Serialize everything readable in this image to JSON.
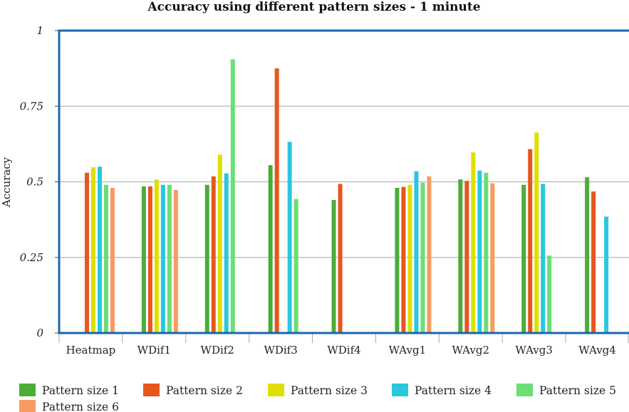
{
  "chart_data": {
    "type": "bar",
    "title": "Accuracy using different pattern sizes - 1 minute",
    "xlabel": "",
    "ylabel": "Accuracy",
    "ylim": [
      0,
      1
    ],
    "yticks": [
      0,
      0.25,
      0.5,
      0.75,
      1
    ],
    "ytick_labels": [
      "0",
      "0.25",
      "0.5",
      "0.75",
      "1"
    ],
    "grid": true,
    "legend_position": "bottom",
    "categories": [
      "Heatmap",
      "WDif1",
      "WDif2",
      "WDif3",
      "WDif4",
      "WAvg1",
      "WAvg2",
      "WAvg3",
      "WAvg4"
    ],
    "series": [
      {
        "name": "Pattern size 1",
        "color": "#4cac3a",
        "values": [
          0,
          0.485,
          0.49,
          0.555,
          0.44,
          0.48,
          0.508,
          0.49,
          0.515
        ]
      },
      {
        "name": "Pattern size 2",
        "color": "#e85620",
        "values": [
          0.53,
          0.485,
          0.518,
          0.875,
          0.493,
          0.483,
          0.503,
          0.608,
          0.468
        ]
      },
      {
        "name": "Pattern size 3",
        "color": "#dee000",
        "values": [
          0.548,
          0.508,
          0.59,
          0,
          0,
          0.49,
          0.597,
          0.663,
          0
        ]
      },
      {
        "name": "Pattern size 4",
        "color": "#2ac7dd",
        "values": [
          0.55,
          0.49,
          0.528,
          0.632,
          0,
          0.535,
          0.537,
          0.493,
          0.385
        ]
      },
      {
        "name": "Pattern size 5",
        "color": "#6adf74",
        "values": [
          0.49,
          0.49,
          0.905,
          0.443,
          0,
          0.497,
          0.53,
          0.256,
          0
        ]
      },
      {
        "name": "Pattern size 6",
        "color": "#f89b63",
        "values": [
          0.48,
          0.473,
          0,
          0,
          0,
          0.518,
          0.495,
          0,
          0
        ]
      }
    ]
  }
}
